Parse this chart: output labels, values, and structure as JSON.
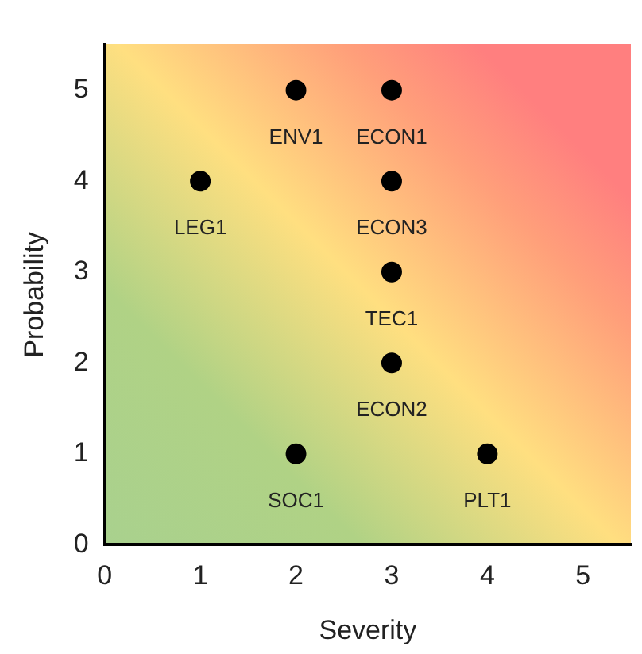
{
  "chart_data": {
    "type": "scatter",
    "xlabel": "Severity",
    "ylabel": "Probability",
    "x": [
      2,
      3,
      1,
      3,
      3,
      3,
      2,
      4
    ],
    "values": [
      5,
      5,
      4,
      4,
      3,
      2,
      1,
      1
    ],
    "color": "#000000",
    "marker": "circle",
    "xlim": [
      0,
      5.5
    ],
    "ylim": [
      0,
      5.5
    ],
    "xticks": [
      0,
      1,
      2,
      3,
      4,
      5
    ],
    "yticks": [
      0,
      1,
      2,
      3,
      4,
      5
    ],
    "grid": false,
    "legend": false,
    "annotations": [
      {
        "text": "ENV1",
        "x": 2,
        "y": 5
      },
      {
        "text": "ECON1",
        "x": 3,
        "y": 5
      },
      {
        "text": "LEG1",
        "x": 1,
        "y": 4
      },
      {
        "text": "ECON3",
        "x": 3,
        "y": 4
      },
      {
        "text": "TEC1",
        "x": 3,
        "y": 3
      },
      {
        "text": "ECON2",
        "x": 3,
        "y": 2
      },
      {
        "text": "SOC1",
        "x": 2,
        "y": 1
      },
      {
        "text": "PLT1",
        "x": 4,
        "y": 1
      }
    ]
  }
}
